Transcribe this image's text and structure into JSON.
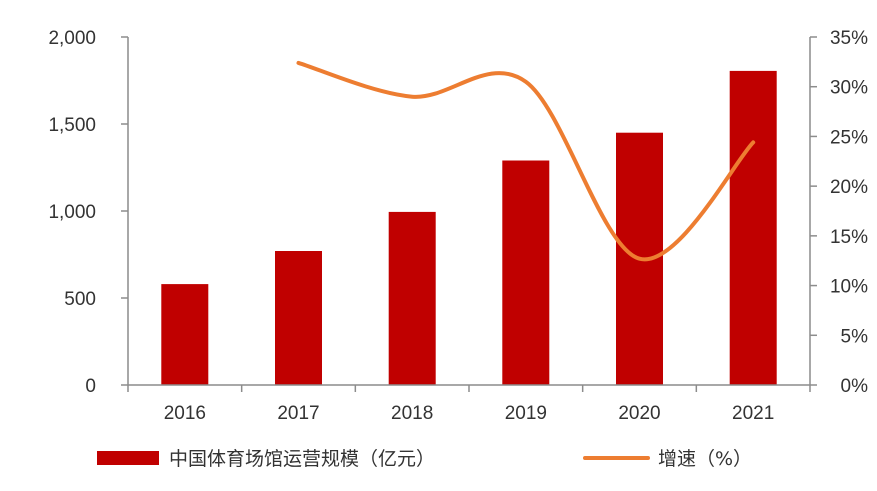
{
  "colors": {
    "bar": "#C00000",
    "line": "#ED7D31",
    "axis": "#8c8c8c",
    "text": "#333333"
  },
  "legend": {
    "bar_label": "中国体育场馆运营规模（亿元）",
    "line_label": "增速（%）"
  },
  "chart_data": {
    "type": "bar",
    "categories": [
      "2016",
      "2017",
      "2018",
      "2019",
      "2020",
      "2021"
    ],
    "series": [
      {
        "name": "中国体育场馆运营规模（亿元）",
        "type": "bar",
        "axis": "left",
        "values": [
          580,
          770,
          995,
          1290,
          1450,
          1805
        ]
      },
      {
        "name": "增速（%）",
        "type": "line",
        "axis": "right",
        "values": [
          null,
          32.4,
          29.0,
          30.5,
          12.7,
          24.4
        ]
      }
    ],
    "y_left": {
      "ylim": [
        0,
        2000
      ],
      "ticks": [
        0,
        500,
        1000,
        1500,
        2000
      ],
      "tick_labels": [
        "0",
        "500",
        "1,000",
        "1,500",
        "2,000"
      ]
    },
    "y_right": {
      "ylim": [
        0,
        35
      ],
      "ticks": [
        0,
        5,
        10,
        15,
        20,
        25,
        30,
        35
      ],
      "tick_labels": [
        "0%",
        "5%",
        "10%",
        "15%",
        "20%",
        "25%",
        "30%",
        "35%"
      ]
    },
    "title": "",
    "xlabel": "",
    "ylabel": "",
    "grid": false,
    "legend_position": "bottom"
  }
}
